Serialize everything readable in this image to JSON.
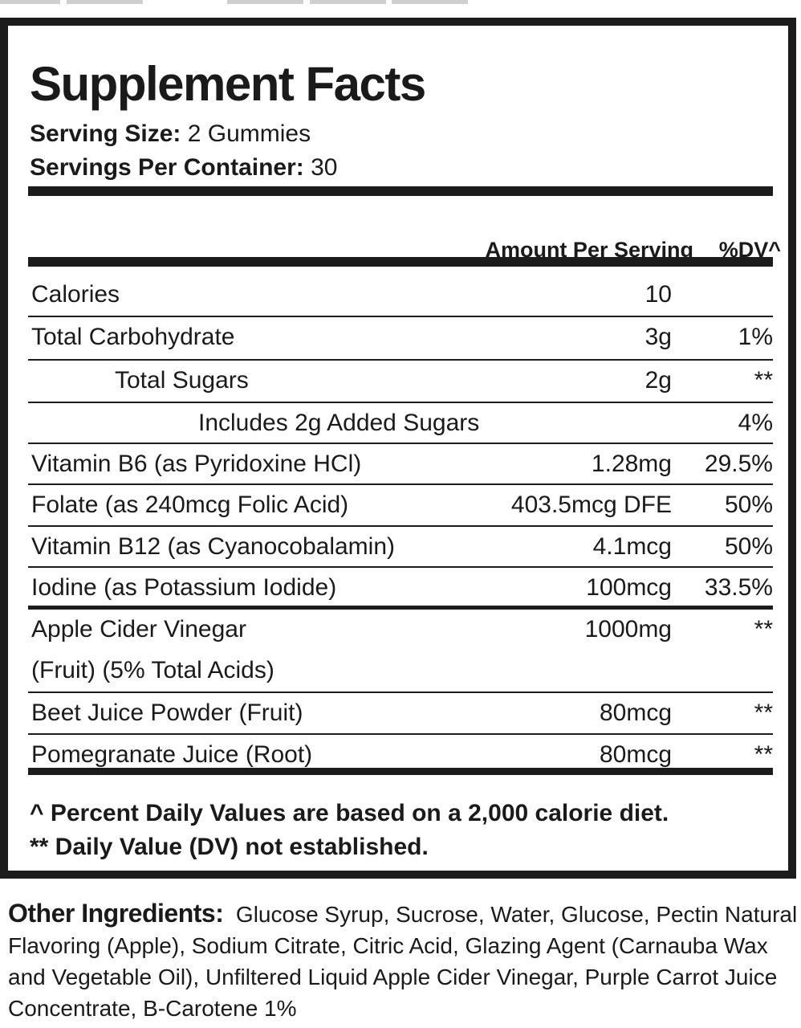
{
  "title": "Supplement Facts",
  "serving_size": {
    "label": "Serving Size:",
    "value": "2 Gummies"
  },
  "servings_per_container": {
    "label": "Servings Per Container:",
    "value": "30"
  },
  "header": {
    "amount": "Amount Per Serving",
    "dv": "%DV^"
  },
  "rows": [
    {
      "name": "Calories",
      "amount": "10",
      "dv": ""
    },
    {
      "name": "Total Carbohydrate",
      "amount": "3g",
      "dv": "1%"
    },
    {
      "name": "Total Sugars",
      "amount": "2g",
      "dv": "**"
    },
    {
      "name": "Includes 2g Added Sugars",
      "amount": "",
      "dv": "4%"
    },
    {
      "name": "Vitamin B6 (as Pyridoxine HCl)",
      "amount": "1.28mg",
      "dv": "29.5%"
    },
    {
      "name": "Folate (as 240mcg Folic Acid)",
      "amount": "403.5mcg DFE",
      "dv": "50%"
    },
    {
      "name": "Vitamin B12 (as Cyanocobalamin)",
      "amount": "4.1mcg",
      "dv": "50%"
    },
    {
      "name": "Iodine (as Potassium Iodide)",
      "amount": "100mcg",
      "dv": "33.5%"
    },
    {
      "name": "Apple Cider Vinegar",
      "name2": "(Fruit) (5% Total Acids)",
      "amount": "1000mg",
      "dv": "**"
    },
    {
      "name": "Beet Juice Powder (Fruit)",
      "amount": "80mcg",
      "dv": "**"
    },
    {
      "name": "Pomegranate Juice (Root)",
      "amount": "80mcg",
      "dv": "**"
    }
  ],
  "footnotes": [
    "^ Percent Daily Values are based on a 2,000 calorie diet.",
    "** Daily Value (DV) not established."
  ],
  "other_ingredients": {
    "label": "Other Ingredients:",
    "text": "Glucose Syrup, Sucrose, Water, Glucose, Pectin Natural Flavoring (Apple), Sodium Citrate, Citric Acid, Glazing Agent (Carnauba Wax and Vegetable Oil), Unfiltered Liquid Apple Cider Vinegar, Purple Carrot Juice Concentrate, B-Carotene 1%"
  }
}
